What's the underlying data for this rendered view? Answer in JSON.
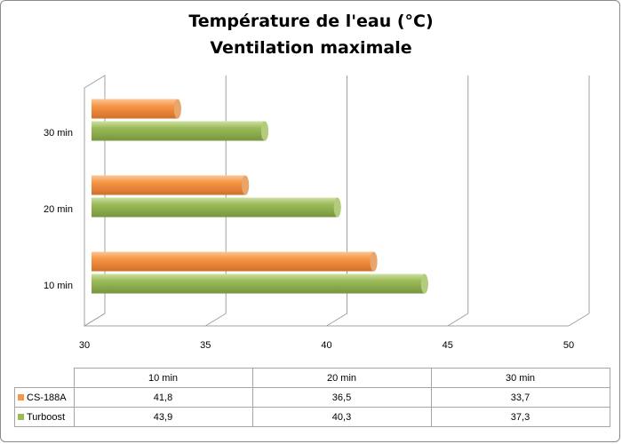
{
  "chart_data": {
    "type": "bar",
    "orientation": "horizontal",
    "title": "Température de l'eau (°C)",
    "subtitle": "Ventilation maximale",
    "categories": [
      "10 min",
      "20 min",
      "30 min"
    ],
    "series": [
      {
        "name": "CS-188A",
        "values": [
          41.8,
          36.5,
          33.7
        ],
        "display": [
          "41,8",
          "36,5",
          "33,7"
        ],
        "color": "#f79646"
      },
      {
        "name": "Turboost",
        "values": [
          43.9,
          40.3,
          37.3
        ],
        "display": [
          "43,9",
          "40,3",
          "37,3"
        ],
        "color": "#9bbb59"
      }
    ],
    "xlim": [
      30,
      50
    ],
    "xticks": [
      30,
      35,
      40,
      45,
      50
    ],
    "grid": true,
    "legend": "data table below chart",
    "style": "3d-cylinder"
  }
}
